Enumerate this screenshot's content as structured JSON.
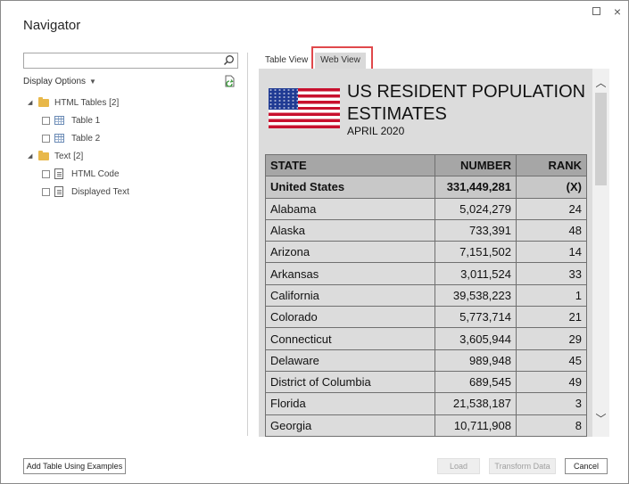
{
  "window": {
    "title": "Navigator",
    "maximize_label": "",
    "close_label": "×"
  },
  "left_panel": {
    "search": {
      "value": "",
      "placeholder": ""
    },
    "display_options_label": "Display Options",
    "tree": [
      {
        "label": "HTML Tables [2]",
        "type": "folder"
      },
      {
        "label": "Table 1",
        "type": "table"
      },
      {
        "label": "Table 2",
        "type": "table"
      },
      {
        "label": "Text [2]",
        "type": "folder"
      },
      {
        "label": "HTML Code",
        "type": "text"
      },
      {
        "label": "Displayed Text",
        "type": "text"
      }
    ]
  },
  "tabs": {
    "table_view": "Table View",
    "web_view": "Web View",
    "active": "web_view"
  },
  "web_view": {
    "heading": "US RESIDENT POPULATION ESTIMATES",
    "subheading": "APRIL 2020",
    "table": {
      "headers": [
        "STATE",
        "NUMBER",
        "RANK"
      ],
      "rows": [
        [
          "United States",
          "331,449,281",
          "(X)"
        ],
        [
          "Alabama",
          "5,024,279",
          "24"
        ],
        [
          "Alaska",
          "733,391",
          "48"
        ],
        [
          "Arizona",
          "7,151,502",
          "14"
        ],
        [
          "Arkansas",
          "3,011,524",
          "33"
        ],
        [
          "California",
          "39,538,223",
          "1"
        ],
        [
          "Colorado",
          "5,773,714",
          "21"
        ],
        [
          "Connecticut",
          "3,605,944",
          "29"
        ],
        [
          "Delaware",
          "989,948",
          "45"
        ],
        [
          "District of Columbia",
          "689,545",
          "49"
        ],
        [
          "Florida",
          "21,538,187",
          "3"
        ],
        [
          "Georgia",
          "10,711,908",
          "8"
        ]
      ]
    }
  },
  "buttons": {
    "add_table": "Add Table Using Examples",
    "load": "Load",
    "transform": "Transform Data",
    "cancel": "Cancel"
  },
  "colors": {
    "highlight": "#e0484b",
    "folder": "#e8b84a"
  }
}
